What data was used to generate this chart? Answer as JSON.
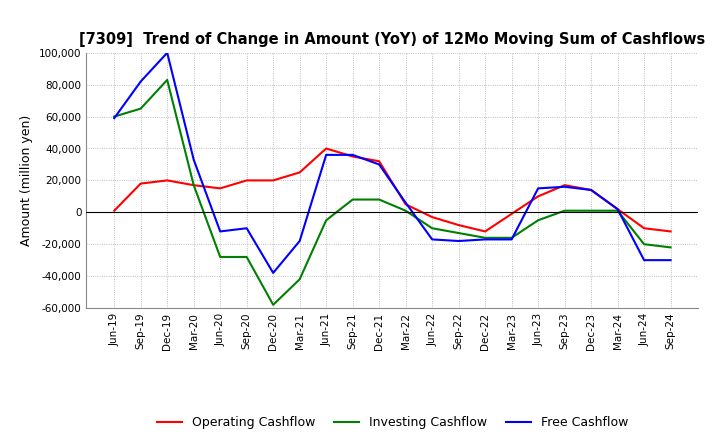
{
  "title": "[7309]  Trend of Change in Amount (YoY) of 12Mo Moving Sum of Cashflows",
  "ylabel": "Amount (million yen)",
  "ylim": [
    -60000,
    100000
  ],
  "yticks": [
    -60000,
    -40000,
    -20000,
    0,
    20000,
    40000,
    60000,
    80000,
    100000
  ],
  "dates": [
    "Jun-19",
    "Sep-19",
    "Dec-19",
    "Mar-20",
    "Jun-20",
    "Sep-20",
    "Dec-20",
    "Mar-21",
    "Jun-21",
    "Sep-21",
    "Dec-21",
    "Mar-22",
    "Jun-22",
    "Sep-22",
    "Dec-22",
    "Mar-23",
    "Jun-23",
    "Sep-23",
    "Dec-23",
    "Mar-24",
    "Jun-24",
    "Sep-24"
  ],
  "operating": [
    1000,
    18000,
    20000,
    17000,
    15000,
    20000,
    20000,
    25000,
    40000,
    35000,
    32000,
    5000,
    -3000,
    -8000,
    -12000,
    -1000,
    10000,
    17000,
    14000,
    2000,
    -10000,
    -12000
  ],
  "investing": [
    60000,
    65000,
    83000,
    17000,
    -28000,
    -28000,
    -58000,
    -42000,
    -5000,
    8000,
    8000,
    1000,
    -10000,
    -13000,
    -16000,
    -16000,
    -5000,
    1000,
    1000,
    1000,
    -20000,
    -22000
  ],
  "free": [
    59000,
    82000,
    100000,
    33000,
    -12000,
    -10000,
    -38000,
    -18000,
    36000,
    36000,
    30000,
    6000,
    -17000,
    -18000,
    -17000,
    -17000,
    15000,
    16000,
    14000,
    2000,
    -30000,
    -30000
  ],
  "operating_color": "#ff0000",
  "investing_color": "#008000",
  "free_color": "#0000ff",
  "bg_color": "#ffffff",
  "grid_color": "#aaaaaa"
}
